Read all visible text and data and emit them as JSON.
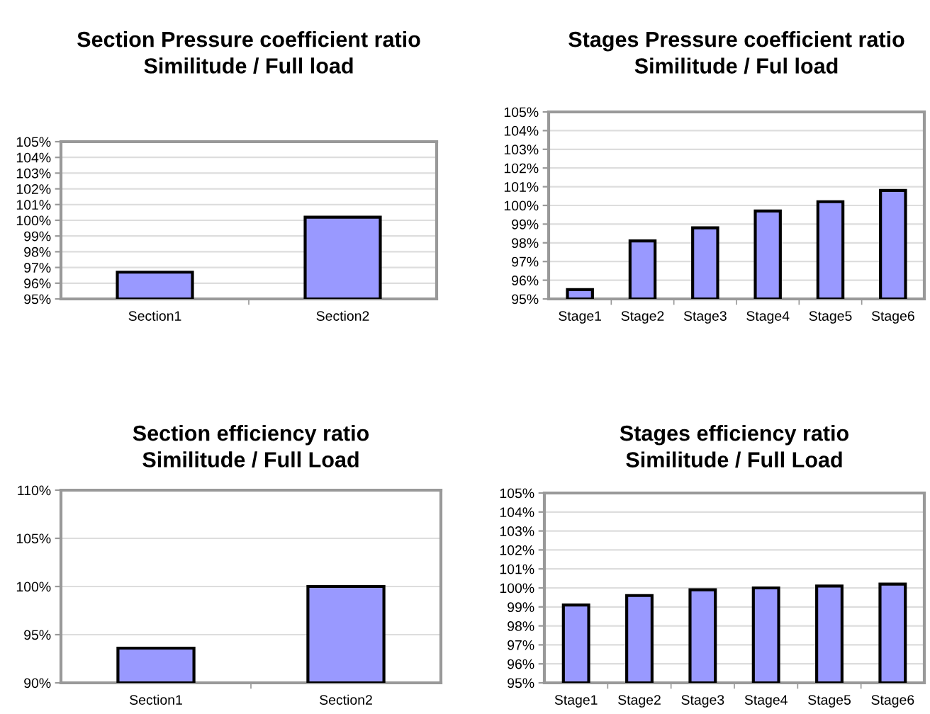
{
  "chart_data": [
    {
      "type": "bar",
      "title": "Section Pressure coefficient ratio\nSimilitude / Full load",
      "categories": [
        "Section1",
        "Section2"
      ],
      "values": [
        96.7,
        100.2
      ],
      "color": "#9999ff",
      "ylim": [
        95,
        105
      ],
      "yticks": [
        {
          "value": 95,
          "label": "95%"
        },
        {
          "value": 96,
          "label": "96%"
        },
        {
          "value": 97,
          "label": "97%"
        },
        {
          "value": 98,
          "label": "98%"
        },
        {
          "value": 99,
          "label": "99%"
        },
        {
          "value": 100,
          "label": "100%"
        },
        {
          "value": 101,
          "label": "101%"
        },
        {
          "value": 102,
          "label": "102%"
        },
        {
          "value": 103,
          "label": "103%"
        },
        {
          "value": 104,
          "label": "104%"
        },
        {
          "value": 105,
          "label": "105%"
        }
      ],
      "grid": "y"
    },
    {
      "type": "bar",
      "title": "Stages Pressure coefficient ratio\nSimilitude / Ful load",
      "categories": [
        "Stage1",
        "Stage2",
        "Stage3",
        "Stage4",
        "Stage5",
        "Stage6"
      ],
      "values": [
        95.5,
        98.1,
        98.8,
        99.7,
        100.2,
        100.8
      ],
      "color": "#9999ff",
      "ylim": [
        95,
        105
      ],
      "yticks": [
        {
          "value": 95,
          "label": "95%"
        },
        {
          "value": 96,
          "label": "96%"
        },
        {
          "value": 97,
          "label": "97%"
        },
        {
          "value": 98,
          "label": "98%"
        },
        {
          "value": 99,
          "label": "99%"
        },
        {
          "value": 100,
          "label": "100%"
        },
        {
          "value": 101,
          "label": "101%"
        },
        {
          "value": 102,
          "label": "102%"
        },
        {
          "value": 103,
          "label": "103%"
        },
        {
          "value": 104,
          "label": "104%"
        },
        {
          "value": 105,
          "label": "105%"
        }
      ],
      "grid": "y"
    },
    {
      "type": "bar",
      "title": "Section efficiency ratio\nSimilitude / Full Load",
      "categories": [
        "Section1",
        "Section2"
      ],
      "values": [
        93.6,
        100.0
      ],
      "color": "#9999ff",
      "ylim": [
        90,
        110
      ],
      "yticks": [
        {
          "value": 90,
          "label": "90%"
        },
        {
          "value": 95,
          "label": "95%"
        },
        {
          "value": 100,
          "label": "100%"
        },
        {
          "value": 105,
          "label": "105%"
        },
        {
          "value": 110,
          "label": "110%"
        }
      ],
      "grid": "y"
    },
    {
      "type": "bar",
      "title": "Stages efficiency ratio\nSimilitude / Full Load",
      "categories": [
        "Stage1",
        "Stage2",
        "Stage3",
        "Stage4",
        "Stage5",
        "Stage6"
      ],
      "values": [
        99.1,
        99.6,
        99.9,
        100.0,
        100.1,
        100.2
      ],
      "color": "#9999ff",
      "ylim": [
        95,
        105
      ],
      "yticks": [
        {
          "value": 95,
          "label": "95%"
        },
        {
          "value": 96,
          "label": "96%"
        },
        {
          "value": 97,
          "label": "97%"
        },
        {
          "value": 98,
          "label": "98%"
        },
        {
          "value": 99,
          "label": "99%"
        },
        {
          "value": 100,
          "label": "100%"
        },
        {
          "value": 101,
          "label": "101%"
        },
        {
          "value": 102,
          "label": "102%"
        },
        {
          "value": 103,
          "label": "103%"
        },
        {
          "value": 104,
          "label": "104%"
        },
        {
          "value": 105,
          "label": "105%"
        }
      ],
      "grid": "y"
    }
  ]
}
